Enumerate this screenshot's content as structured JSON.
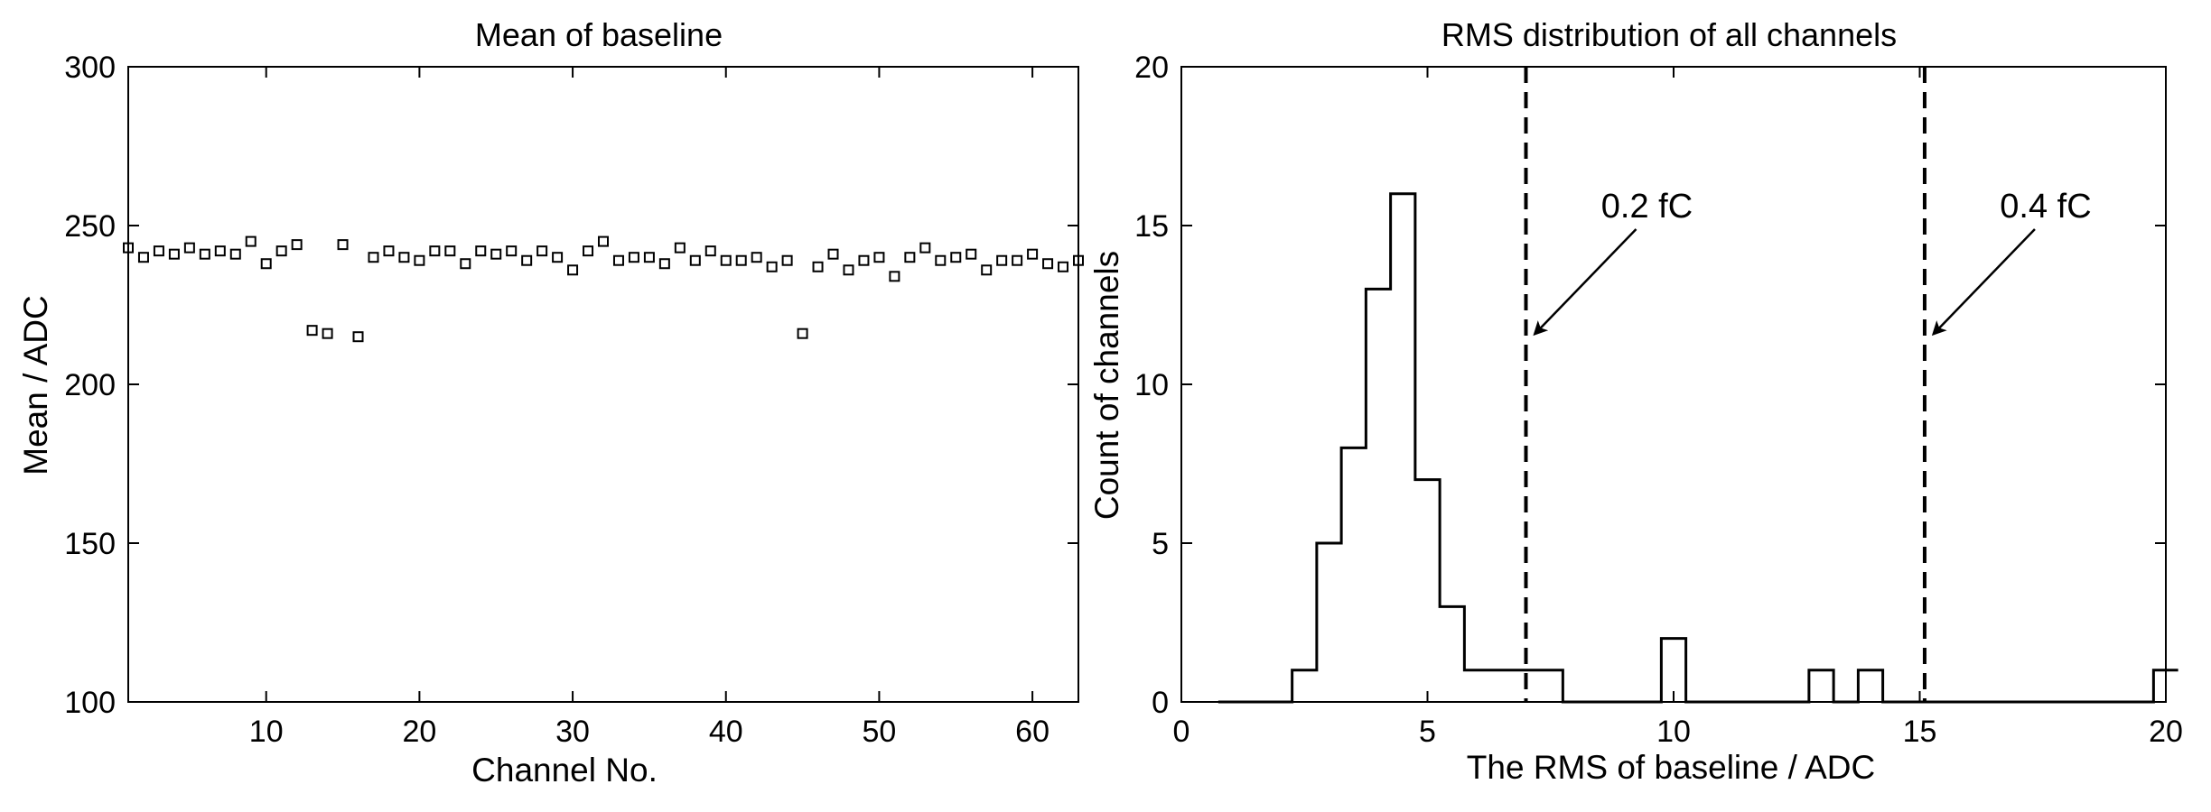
{
  "chart_data": [
    {
      "type": "scatter",
      "title": "Mean of baseline",
      "xlabel": "Channel No.",
      "ylabel": "Mean / ADC",
      "xlim": [
        1,
        63
      ],
      "ylim": [
        100,
        300
      ],
      "xticks": [
        10,
        20,
        30,
        40,
        50,
        60
      ],
      "yticks": [
        100,
        150,
        200,
        250,
        300
      ],
      "marker": "open-square",
      "grid": false,
      "points": {
        "x": [
          1,
          2,
          3,
          4,
          5,
          6,
          7,
          8,
          9,
          10,
          11,
          12,
          13,
          14,
          15,
          16,
          17,
          18,
          19,
          20,
          21,
          22,
          23,
          24,
          25,
          26,
          27,
          28,
          29,
          30,
          31,
          32,
          33,
          34,
          35,
          36,
          37,
          38,
          39,
          40,
          41,
          42,
          43,
          44,
          45,
          46,
          47,
          48,
          49,
          50,
          51,
          52,
          53,
          54,
          55,
          56,
          57,
          58,
          59,
          60,
          61,
          62,
          63
        ],
        "y": [
          243,
          240,
          242,
          241,
          243,
          241,
          242,
          241,
          245,
          238,
          242,
          244,
          217,
          216,
          244,
          215,
          240,
          242,
          240,
          239,
          242,
          242,
          238,
          242,
          241,
          242,
          239,
          242,
          240,
          236,
          242,
          245,
          239,
          240,
          240,
          238,
          243,
          239,
          242,
          239,
          239,
          240,
          237,
          239,
          216,
          237,
          241,
          236,
          239,
          240,
          234,
          240,
          243,
          239,
          240,
          241,
          236,
          239,
          239,
          241,
          238,
          237,
          239
        ]
      }
    },
    {
      "type": "histogram",
      "title": "RMS distribution of all channels",
      "xlabel": "The RMS of baseline / ADC",
      "ylabel": "Count of channels",
      "xlim": [
        0,
        20
      ],
      "ylim": [
        0,
        20
      ],
      "xticks": [
        0,
        5,
        10,
        15,
        20
      ],
      "yticks": [
        0,
        5,
        10,
        15,
        20
      ],
      "bin_width": 0.5,
      "bins": [
        {
          "x0": 0.75,
          "count": 0
        },
        {
          "x0": 1.25,
          "count": 0
        },
        {
          "x0": 1.75,
          "count": 0
        },
        {
          "x0": 2.25,
          "count": 1
        },
        {
          "x0": 2.75,
          "count": 5
        },
        {
          "x0": 3.25,
          "count": 8
        },
        {
          "x0": 3.75,
          "count": 13
        },
        {
          "x0": 4.25,
          "count": 16
        },
        {
          "x0": 4.75,
          "count": 7
        },
        {
          "x0": 5.25,
          "count": 3
        },
        {
          "x0": 5.75,
          "count": 1
        },
        {
          "x0": 6.25,
          "count": 1
        },
        {
          "x0": 6.75,
          "count": 1
        },
        {
          "x0": 7.25,
          "count": 1
        },
        {
          "x0": 7.75,
          "count": 0
        },
        {
          "x0": 8.25,
          "count": 0
        },
        {
          "x0": 8.75,
          "count": 0
        },
        {
          "x0": 9.25,
          "count": 0
        },
        {
          "x0": 9.75,
          "count": 2
        },
        {
          "x0": 10.25,
          "count": 0
        },
        {
          "x0": 10.75,
          "count": 0
        },
        {
          "x0": 11.25,
          "count": 0
        },
        {
          "x0": 11.75,
          "count": 0
        },
        {
          "x0": 12.25,
          "count": 0
        },
        {
          "x0": 12.75,
          "count": 1
        },
        {
          "x0": 13.25,
          "count": 0
        },
        {
          "x0": 13.75,
          "count": 1
        },
        {
          "x0": 14.25,
          "count": 0
        },
        {
          "x0": 14.75,
          "count": 0
        },
        {
          "x0": 15.25,
          "count": 0
        },
        {
          "x0": 15.75,
          "count": 0
        },
        {
          "x0": 16.25,
          "count": 0
        },
        {
          "x0": 16.75,
          "count": 0
        },
        {
          "x0": 17.25,
          "count": 0
        },
        {
          "x0": 17.75,
          "count": 0
        },
        {
          "x0": 18.25,
          "count": 0
        },
        {
          "x0": 18.75,
          "count": 0
        },
        {
          "x0": 19.25,
          "count": 0
        },
        {
          "x0": 19.75,
          "count": 1
        }
      ],
      "thresholds": [
        {
          "x": 7.0,
          "label": "0.2 fC"
        },
        {
          "x": 15.1,
          "label": "0.4 fC"
        }
      ],
      "grid": false
    }
  ]
}
